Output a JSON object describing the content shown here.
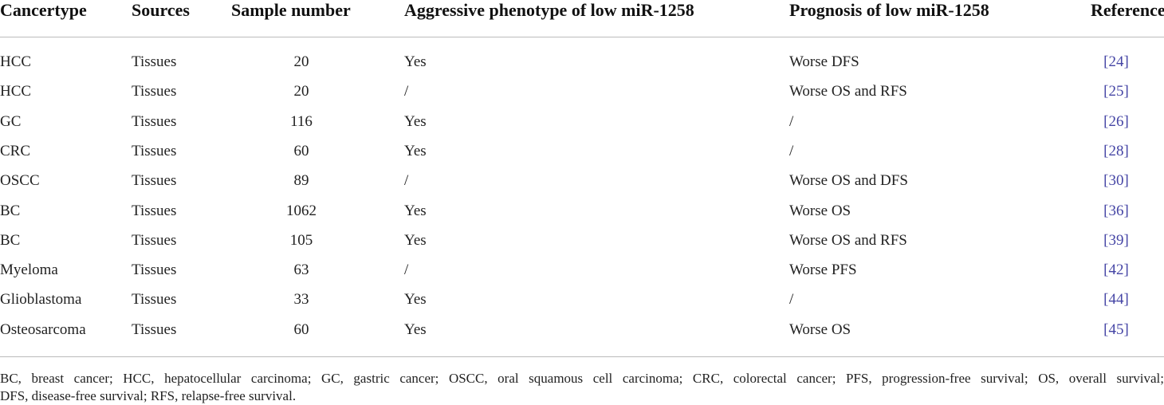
{
  "table": {
    "header": [
      "Cancertype",
      "Sources",
      "Sample number",
      "Aggressive phenotype of low miR-1258",
      "Prognosis of low miR-1258",
      "References"
    ],
    "rows": [
      [
        "HCC",
        "Tissues",
        "20",
        "Yes",
        "Worse DFS",
        "[24]"
      ],
      [
        "HCC",
        "Tissues",
        "20",
        "/",
        "Worse OS and RFS",
        "[25]"
      ],
      [
        "GC",
        "Tissues",
        "116",
        "Yes",
        "/",
        "[26]"
      ],
      [
        "CRC",
        "Tissues",
        "60",
        "Yes",
        "/",
        "[28]"
      ],
      [
        "OSCC",
        "Tissues",
        "89",
        "/",
        "Worse OS and DFS",
        "[30]"
      ],
      [
        "BC",
        "Tissues",
        "1062",
        "Yes",
        "Worse OS",
        "[36]"
      ],
      [
        "BC",
        "Tissues",
        "105",
        "Yes",
        "Worse OS and RFS",
        "[39]"
      ],
      [
        "Myeloma",
        "Tissues",
        "63",
        "/",
        "Worse PFS",
        "[42]"
      ],
      [
        "Glioblastoma",
        "Tissues",
        "33",
        "Yes",
        "/",
        "[44]"
      ],
      [
        "Osteosarcoma",
        "Tissues",
        "60",
        "Yes",
        "Worse OS",
        "[45]"
      ]
    ],
    "footnote": [
      "BC, breast cancer; HCC, hepatocellular carcinoma; GC, gastric cancer; OSCC, oral squamous cell carcinoma; CRC, colorectal cancer; PFS, progression-free survival; OS, overall survival;",
      "DFS, disease-free survival; RFS, relapse-free survival."
    ]
  }
}
